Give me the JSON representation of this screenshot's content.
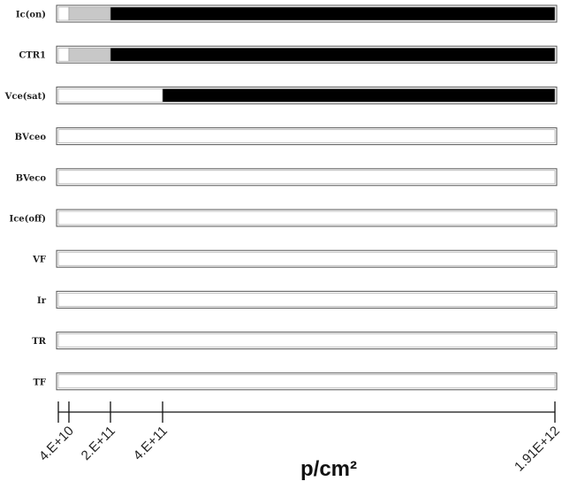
{
  "chart_data": {
    "type": "bar",
    "xlabel": "p/cm²",
    "x_ticks": [
      {
        "value": 40000000000,
        "label": "4.E+10"
      },
      {
        "value": 200000000000,
        "label": "2.E+11"
      },
      {
        "value": 400000000000,
        "label": "4.E+11"
      },
      {
        "value": 1910000000000,
        "label": "1.91E+12"
      }
    ],
    "xlim": [
      0,
      1910000000000
    ],
    "colors": {
      "pass": "#ffffff",
      "marginal": "#c8c8c8",
      "fail": "#000000",
      "border": "#555555"
    },
    "rows": [
      {
        "label": "Ic(on)",
        "segments": [
          {
            "from": 0,
            "to": 40000000000,
            "status": "pass"
          },
          {
            "from": 40000000000,
            "to": 200000000000,
            "status": "marginal"
          },
          {
            "from": 200000000000,
            "to": 1910000000000,
            "status": "fail"
          }
        ]
      },
      {
        "label": "CTR1",
        "segments": [
          {
            "from": 0,
            "to": 40000000000,
            "status": "pass"
          },
          {
            "from": 40000000000,
            "to": 200000000000,
            "status": "marginal"
          },
          {
            "from": 200000000000,
            "to": 1910000000000,
            "status": "fail"
          }
        ]
      },
      {
        "label": "Vce(sat)",
        "segments": [
          {
            "from": 0,
            "to": 400000000000,
            "status": "pass"
          },
          {
            "from": 400000000000,
            "to": 1910000000000,
            "status": "fail"
          }
        ]
      },
      {
        "label": "BVceo",
        "segments": [
          {
            "from": 0,
            "to": 1910000000000,
            "status": "pass"
          }
        ]
      },
      {
        "label": "BVeco",
        "segments": [
          {
            "from": 0,
            "to": 1910000000000,
            "status": "pass"
          }
        ]
      },
      {
        "label": "Ice(off)",
        "segments": [
          {
            "from": 0,
            "to": 1910000000000,
            "status": "pass"
          }
        ]
      },
      {
        "label": "VF",
        "segments": [
          {
            "from": 0,
            "to": 1910000000000,
            "status": "pass"
          }
        ]
      },
      {
        "label": "Ir",
        "segments": [
          {
            "from": 0,
            "to": 1910000000000,
            "status": "pass"
          }
        ]
      },
      {
        "label": "TR",
        "segments": [
          {
            "from": 0,
            "to": 1910000000000,
            "status": "pass"
          }
        ]
      },
      {
        "label": "TF",
        "segments": [
          {
            "from": 0,
            "to": 1910000000000,
            "status": "pass"
          }
        ]
      }
    ]
  }
}
